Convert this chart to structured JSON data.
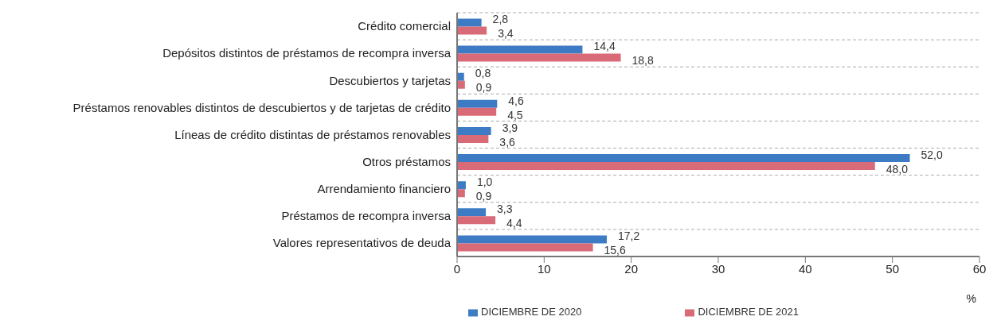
{
  "chart_data": {
    "type": "bar",
    "orientation": "horizontal",
    "categories": [
      "Crédito comercial",
      "Depósitos distintos de préstamos de recompra inversa",
      "Descubiertos y tarjetas",
      "Préstamos renovables distintos de descubiertos y de tarjetas de crédito",
      "Líneas de crédito distintas de préstamos renovables",
      "Otros préstamos",
      "Arrendamiento financiero",
      "Préstamos de recompra inversa",
      "Valores representativos de deuda"
    ],
    "series": [
      {
        "name": "DICIEMBRE DE 2020",
        "color": "#3d7cc4",
        "values": [
          2.8,
          14.4,
          0.8,
          4.6,
          3.9,
          52.0,
          1.0,
          3.3,
          17.2
        ],
        "value_labels": [
          "2,8",
          "14,4",
          "0,8",
          "4,6",
          "3,9",
          "52,0",
          "1,0",
          "3,3",
          "17,2"
        ]
      },
      {
        "name": "DICIEMBRE DE 2021",
        "color": "#d96a78",
        "values": [
          3.4,
          18.8,
          0.9,
          4.5,
          3.6,
          48.0,
          0.9,
          4.4,
          15.6
        ],
        "value_labels": [
          "3,4",
          "18,8",
          "0,9",
          "4,5",
          "3,6",
          "48,0",
          "0,9",
          "4,4",
          "15,6"
        ]
      }
    ],
    "xlabel": "%",
    "xlim": [
      0,
      60
    ],
    "xticks": [
      0,
      10,
      20,
      30,
      40,
      50,
      60
    ],
    "grid": "y",
    "legend": "bottom"
  }
}
